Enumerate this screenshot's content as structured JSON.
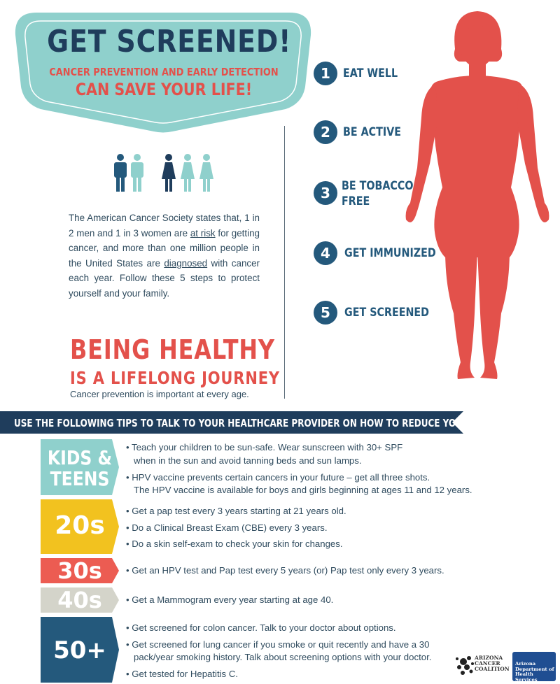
{
  "header": {
    "title": "GET SCREENED!",
    "subtitle_line1": "CANCER PREVENTION AND EARLY DETECTION",
    "subtitle_line2": "CAN SAVE YOUR LIFE!"
  },
  "colors": {
    "teal": "#8fd0cc",
    "navy": "#1f3d5c",
    "red": "#e3514b",
    "step_blue": "#24597c",
    "yellow": "#f2c21f",
    "coral": "#ec5c52",
    "light_gray": "#d4d4ca",
    "dark_blue": "#24597c"
  },
  "intro": {
    "part1": "The American Cancer Society states that, 1 in 2 men and 1 in 3 women are ",
    "at_risk": "at risk",
    "part2": " for getting cancer, and more than one million people in the United States are ",
    "diagnosed": "diagnosed",
    "part3": " with cancer each year. Follow these 5 steps to protect yourself and your family."
  },
  "healthy": {
    "line1": "BEING HEALTHY",
    "line2": "IS A LIFELONG JOURNEY",
    "line3": "Cancer prevention is important at every age."
  },
  "steps": [
    {
      "num": "1",
      "label": "EAT WELL"
    },
    {
      "num": "2",
      "label": "BE ACTIVE"
    },
    {
      "num": "3",
      "label_line1": "BE TOBACCO-",
      "label_line2": "FREE"
    },
    {
      "num": "4",
      "label": "GET IMMUNIZED"
    },
    {
      "num": "5",
      "label": "GET SCREENED"
    }
  ],
  "banner": "USE THE FOLLOWING TIPS TO TALK TO YOUR HEALTHCARE PROVIDER ON HOW TO REDUCE YOUR CANCER RISK",
  "ages": {
    "kids": {
      "label_line1": "KIDS &",
      "label_line2": "TEENS",
      "tips": [
        "• Teach your children to be sun-safe. Wear sunscreen with 30+ SPF",
        "  when in the sun and avoid tanning beds and sun lamps.",
        "• HPV vaccine prevents certain cancers in your future – get all three shots.",
        "  The HPV vaccine is available for boys and girls beginning at ages 11 and 12 years."
      ]
    },
    "twenties": {
      "label": "20s",
      "tips": [
        "• Get a pap test every 3 years starting at 21 years old.",
        "• Do a Clinical Breast Exam (CBE) every 3 years.",
        "• Do a skin self-exam to check your skin for changes."
      ]
    },
    "thirties": {
      "label": "30s",
      "tips": [
        "• Get an HPV test and Pap test every 5 years (or) Pap test only every 3 years."
      ]
    },
    "forties": {
      "label": "40s",
      "tips": [
        "• Get a Mammogram every year starting at age 40."
      ]
    },
    "fifties": {
      "label": "50+",
      "tips": [
        "• Get screened for colon cancer. Talk to your doctor about options.",
        "• Get screened for lung cancer if you smoke or quit recently and have a 30",
        "  pack/year smoking history. Talk about screening options with your doctor.",
        "• Get tested for Hepatitis C."
      ]
    }
  },
  "logos": {
    "acc_line1": "ARIZONA",
    "acc_line2": "CANCER",
    "acc_line3": "COALITION",
    "adhs_line1": "Arizona",
    "adhs_line2": "Department of",
    "adhs_line3": "Health Services"
  }
}
